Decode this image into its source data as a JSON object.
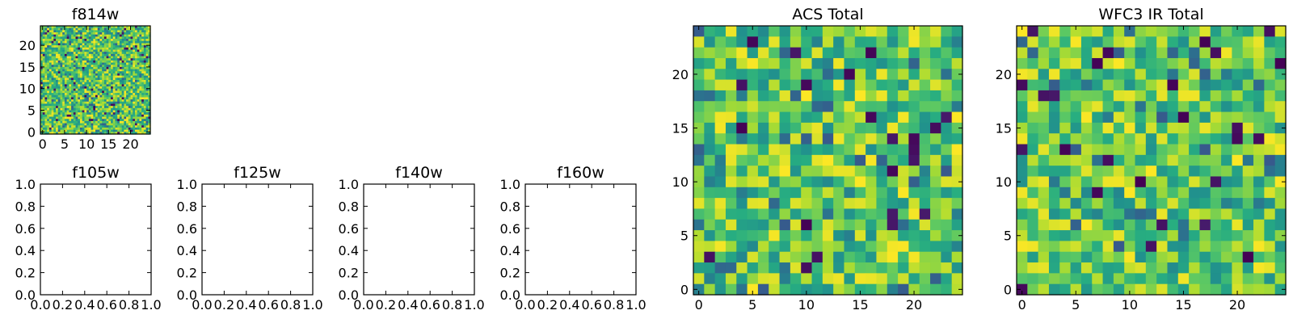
{
  "chart_data": [
    {
      "type": "heatmap",
      "title": "f814w",
      "grid_size": 50,
      "xlim": [
        -0.5,
        24.5
      ],
      "ylim": [
        -0.5,
        24.5
      ],
      "xticks": [
        0,
        5,
        10,
        15,
        20
      ],
      "yticks": [
        0,
        5,
        10,
        15,
        20
      ],
      "tick_labels_x": [
        "0",
        "5",
        "10",
        "15",
        "20"
      ],
      "tick_labels_y": [
        "0",
        "5",
        "10",
        "15",
        "20"
      ],
      "colormap": "viridis",
      "value_range": [
        0,
        1
      ],
      "seed": 11,
      "grid": false
    },
    {
      "type": "heatmap",
      "title": "ACS Total",
      "grid_size": 25,
      "xlim": [
        -0.5,
        24.5
      ],
      "ylim": [
        -0.5,
        24.5
      ],
      "xticks": [
        0,
        5,
        10,
        15,
        20
      ],
      "yticks": [
        0,
        5,
        10,
        15,
        20
      ],
      "tick_labels_x": [
        "0",
        "5",
        "10",
        "15",
        "20"
      ],
      "tick_labels_y": [
        "0",
        "5",
        "10",
        "15",
        "20"
      ],
      "colormap": "viridis",
      "value_range": [
        0,
        1
      ],
      "seed": 23,
      "grid": false
    },
    {
      "type": "heatmap",
      "title": "WFC3 IR Total",
      "grid_size": 25,
      "xlim": [
        -0.5,
        24.5
      ],
      "ylim": [
        -0.5,
        24.5
      ],
      "xticks": [
        0,
        5,
        10,
        15,
        20
      ],
      "yticks": [
        0,
        5,
        10,
        15,
        20
      ],
      "tick_labels_x": [
        "0",
        "5",
        "10",
        "15",
        "20"
      ],
      "tick_labels_y": [
        "0",
        "5",
        "10",
        "15",
        "20"
      ],
      "colormap": "viridis",
      "value_range": [
        0,
        1
      ],
      "seed": 37,
      "grid": false
    },
    {
      "type": "scatter",
      "title": "f105w",
      "xlim": [
        0,
        1
      ],
      "ylim": [
        0,
        1
      ],
      "tick_labels_x": [
        "0.0",
        "0.2",
        "0.4",
        "0.6",
        "0.8",
        "1.0"
      ],
      "tick_labels_y": [
        "0.0",
        "0.2",
        "0.4",
        "0.6",
        "0.8",
        "1.0"
      ],
      "series": [],
      "grid": false
    },
    {
      "type": "scatter",
      "title": "f125w",
      "xlim": [
        0,
        1
      ],
      "ylim": [
        0,
        1
      ],
      "tick_labels_x": [
        "0.0",
        "0.2",
        "0.4",
        "0.6",
        "0.8",
        "1.0"
      ],
      "tick_labels_y": [
        "0.0",
        "0.2",
        "0.4",
        "0.6",
        "0.8",
        "1.0"
      ],
      "series": [],
      "grid": false
    },
    {
      "type": "scatter",
      "title": "f140w",
      "xlim": [
        0,
        1
      ],
      "ylim": [
        0,
        1
      ],
      "tick_labels_x": [
        "0.0",
        "0.2",
        "0.4",
        "0.6",
        "0.8",
        "1.0"
      ],
      "tick_labels_y": [
        "0.0",
        "0.2",
        "0.4",
        "0.6",
        "0.8",
        "1.0"
      ],
      "series": [],
      "grid": false
    },
    {
      "type": "scatter",
      "title": "f160w",
      "xlim": [
        0,
        1
      ],
      "ylim": [
        0,
        1
      ],
      "tick_labels_x": [
        "0.0",
        "0.2",
        "0.4",
        "0.6",
        "0.8",
        "1.0"
      ],
      "tick_labels_y": [
        "0.0",
        "0.2",
        "0.4",
        "0.6",
        "0.8",
        "1.0"
      ],
      "series": [],
      "grid": false
    }
  ]
}
